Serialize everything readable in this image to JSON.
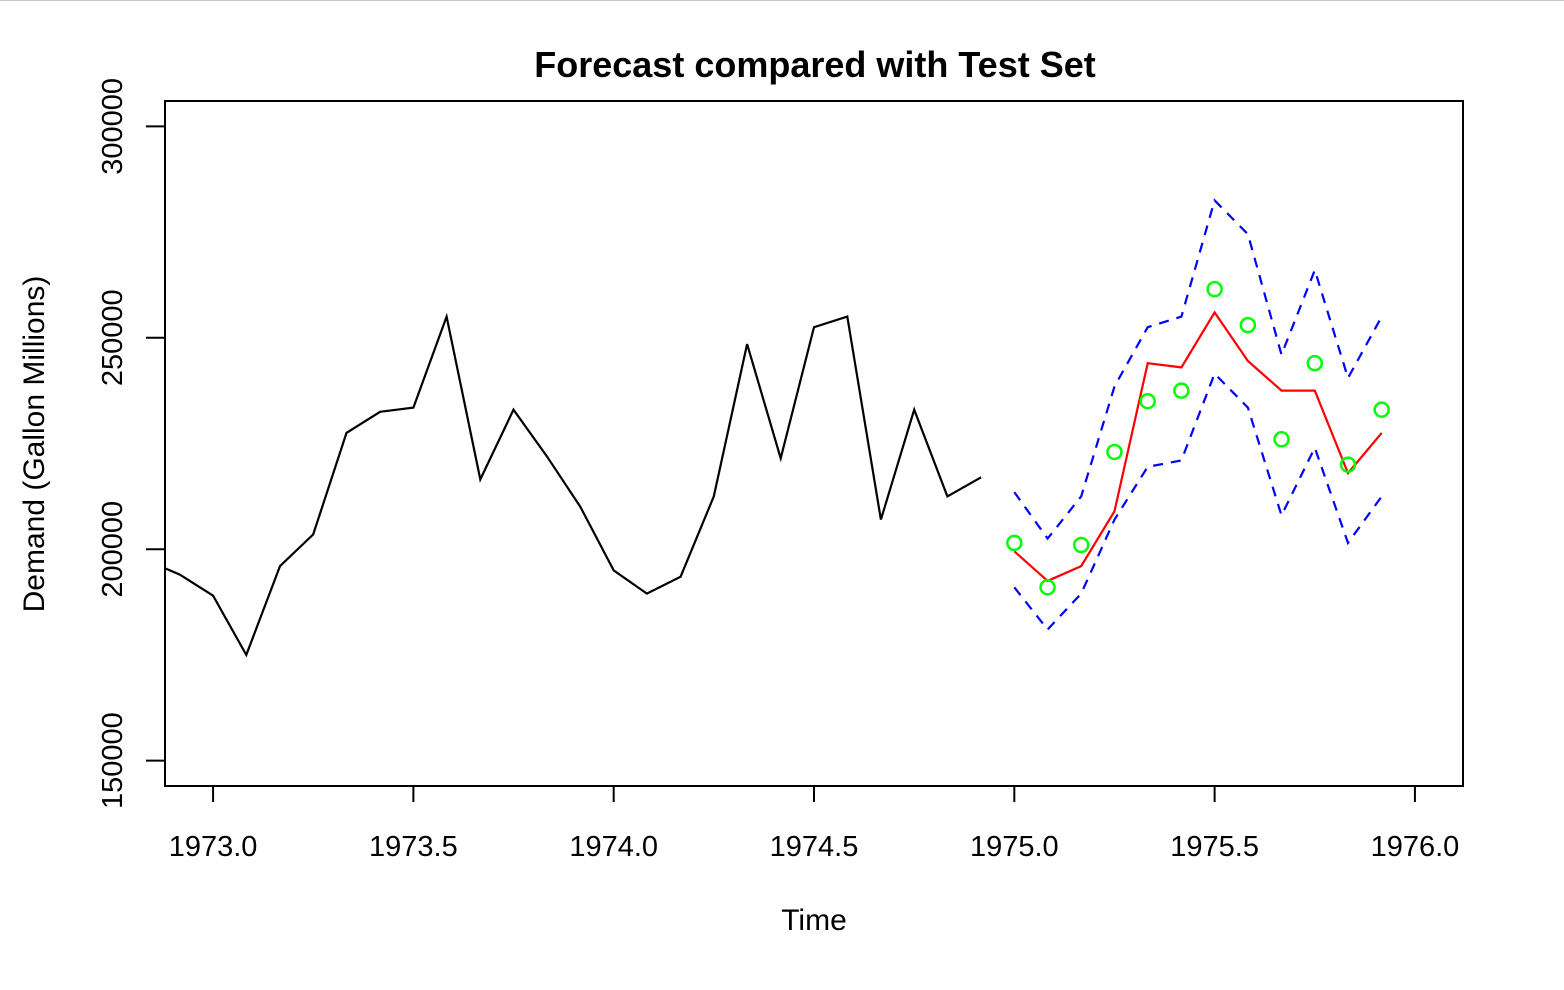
{
  "chart_data": {
    "type": "line",
    "title": "Forecast compared with Test Set",
    "xlabel": "Time",
    "ylabel": "Demand (Gallon Millions)",
    "xlim": [
      1972.88,
      1976.12
    ],
    "ylim": [
      144000,
      306000
    ],
    "x_ticks": [
      1973.0,
      1973.5,
      1974.0,
      1974.5,
      1975.0,
      1975.5,
      1976.0
    ],
    "x_tick_labels": [
      "1973.0",
      "1973.5",
      "1974.0",
      "1974.5",
      "1975.0",
      "1975.5",
      "1976.0"
    ],
    "y_ticks": [
      150000,
      200000,
      250000,
      300000
    ],
    "y_tick_labels": [
      "150000",
      "200000",
      "250000",
      "300000"
    ],
    "colors": {
      "history": "#000000",
      "forecast": "#ff0000",
      "interval": "#0000ff",
      "test": "#00ff00"
    },
    "series": [
      {
        "role": "history",
        "style": "solid-line",
        "x": [
          1972.88,
          1972.917,
          1973.0,
          1973.083,
          1973.167,
          1973.25,
          1973.333,
          1973.417,
          1973.5,
          1973.583,
          1973.667,
          1973.75,
          1973.833,
          1973.917,
          1974.0,
          1974.083,
          1974.167,
          1974.25,
          1974.333,
          1974.417,
          1974.5,
          1974.583,
          1974.667,
          1974.75,
          1974.833,
          1974.917
        ],
        "values": [
          195500,
          194000,
          189000,
          175000,
          196000,
          203500,
          227500,
          232500,
          233500,
          255000,
          216500,
          233000,
          222000,
          210000,
          195000,
          189500,
          193500,
          212500,
          248500,
          221500,
          252500,
          255000,
          207000,
          233000,
          212500,
          217000
        ]
      },
      {
        "role": "forecast",
        "style": "solid-line",
        "x": [
          1975.0,
          1975.083,
          1975.167,
          1975.25,
          1975.333,
          1975.417,
          1975.5,
          1975.583,
          1975.667,
          1975.75,
          1975.833,
          1975.917
        ],
        "values": [
          199500,
          192500,
          196000,
          209000,
          244000,
          243000,
          256000,
          244500,
          237500,
          237500,
          218000,
          227500
        ]
      },
      {
        "role": "interval-upper",
        "style": "dashed-line",
        "x": [
          1975.0,
          1975.083,
          1975.167,
          1975.25,
          1975.333,
          1975.417,
          1975.5,
          1975.583,
          1975.667,
          1975.75,
          1975.833,
          1975.917
        ],
        "values": [
          213500,
          202500,
          212500,
          238500,
          252500,
          255000,
          282500,
          274500,
          246000,
          266000,
          240500,
          255000
        ]
      },
      {
        "role": "interval-lower",
        "style": "dashed-line",
        "x": [
          1975.0,
          1975.083,
          1975.167,
          1975.25,
          1975.333,
          1975.417,
          1975.5,
          1975.583,
          1975.667,
          1975.75,
          1975.833,
          1975.917
        ],
        "values": [
          191000,
          181000,
          189500,
          207000,
          219500,
          221000,
          241500,
          233500,
          208000,
          224000,
          201500,
          212500
        ]
      },
      {
        "role": "test",
        "style": "open-circles",
        "x": [
          1975.0,
          1975.083,
          1975.167,
          1975.25,
          1975.333,
          1975.417,
          1975.5,
          1975.583,
          1975.667,
          1975.75,
          1975.833,
          1975.917
        ],
        "values": [
          201500,
          191000,
          201000,
          223000,
          235000,
          237500,
          261500,
          253000,
          226000,
          244000,
          220000,
          233000
        ]
      }
    ]
  }
}
